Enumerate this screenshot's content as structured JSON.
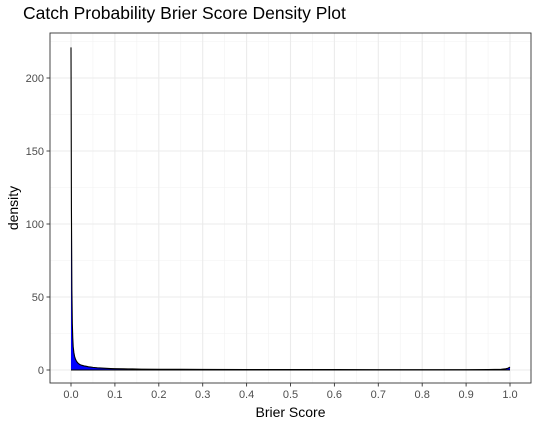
{
  "chart_data": {
    "type": "area",
    "title": "Catch Probability Brier Score Density Plot",
    "xlabel": "Brier Score",
    "ylabel": "density",
    "xlim": [
      0,
      1
    ],
    "ylim": [
      0,
      220
    ],
    "xticks": [
      0.0,
      0.1,
      0.2,
      0.3,
      0.4,
      0.5,
      0.6,
      0.7,
      0.8,
      0.9,
      1.0
    ],
    "xtick_labels": [
      "0.0",
      "0.1",
      "0.2",
      "0.3",
      "0.4",
      "0.5",
      "0.6",
      "0.7",
      "0.8",
      "0.9",
      "1.0"
    ],
    "yticks": [
      0,
      50,
      100,
      150,
      200
    ],
    "ytick_labels": [
      "0",
      "50",
      "100",
      "150",
      "200"
    ],
    "grid": true,
    "legend": "none",
    "theme": "bw",
    "fill_color": "#0000ff",
    "line_color": "#000000",
    "series": [
      {
        "x": [
          0.0,
          0.0005,
          0.001,
          0.002,
          0.003,
          0.004,
          0.005,
          0.0065,
          0.008,
          0.01,
          0.0125,
          0.015,
          0.0175,
          0.02,
          0.025,
          0.03,
          0.035,
          0.04,
          0.045,
          0.05,
          0.06,
          0.07,
          0.08,
          0.09,
          0.1,
          0.12,
          0.14,
          0.16,
          0.2,
          0.25,
          0.3,
          0.4,
          0.5,
          0.6,
          0.7,
          0.8,
          0.9,
          0.95,
          0.98,
          0.99,
          0.995,
          1.0
        ],
        "y": [
          221,
          170,
          110,
          55,
          32,
          22,
          16,
          12,
          9.5,
          7.5,
          6,
          5,
          4.3,
          3.8,
          3.2,
          2.8,
          2.5,
          2.2,
          2,
          1.8,
          1.5,
          1.3,
          1.15,
          1.0,
          0.9,
          0.8,
          0.7,
          0.6,
          0.5,
          0.45,
          0.4,
          0.35,
          0.3,
          0.28,
          0.26,
          0.25,
          0.25,
          0.3,
          0.5,
          0.8,
          1.2,
          2.0
        ]
      }
    ]
  }
}
